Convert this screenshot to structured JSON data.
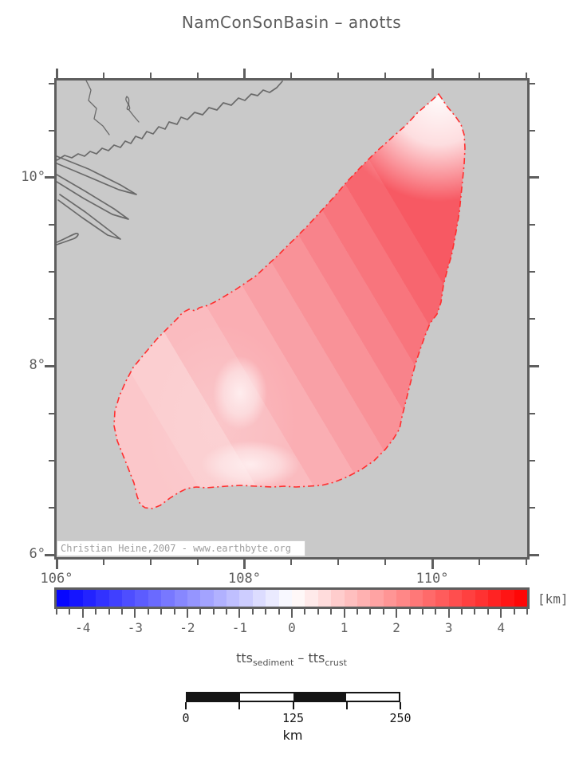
{
  "title": "NamConSonBasin – anotts",
  "map": {
    "attribution": "Christian Heine,2007 - www.earthbyte.org",
    "axes": {
      "lon": {
        "min": 106,
        "max": 111.01,
        "tick_step": 0.5,
        "annotations": [
          {
            "value": 106,
            "text": "106°"
          },
          {
            "value": 108,
            "text": "108°"
          },
          {
            "value": 110,
            "text": "110°"
          }
        ]
      },
      "lat": {
        "min": 5.975,
        "max": 11.03,
        "tick_step": 0.5,
        "annotations": [
          {
            "value": 10,
            "text": "10°"
          },
          {
            "value": 8,
            "text": "8°"
          },
          {
            "value": 6,
            "text": "6°"
          }
        ]
      }
    }
  },
  "colorbar": {
    "unit": "[km]",
    "min": -4.5,
    "max": 4.5,
    "step": 0.25,
    "annotations": [
      {
        "value": -4,
        "text": "-4"
      },
      {
        "value": -3,
        "text": "-3"
      },
      {
        "value": -2,
        "text": "-2"
      },
      {
        "value": -1,
        "text": "-1"
      },
      {
        "value": 0,
        "text": "0"
      },
      {
        "value": 1,
        "text": "1"
      },
      {
        "value": 2,
        "text": "2"
      },
      {
        "value": 3,
        "text": "3"
      },
      {
        "value": 4,
        "text": "4"
      }
    ]
  },
  "legend": {
    "term1": "tts",
    "term1_sub": "sediment",
    "operator": " – ",
    "term2": "tts",
    "term2_sub": "crust"
  },
  "scalebar": {
    "labels": [
      {
        "frac": 0,
        "text": "0"
      },
      {
        "frac": 0.5,
        "text": "125"
      },
      {
        "frac": 1,
        "text": "250"
      }
    ],
    "unit": "km",
    "segments": 4
  },
  "chart_data": {
    "type": "heatmap",
    "title": "NamConSonBasin – anotts",
    "variable": "tts_sediment - tts_crust",
    "unit": "km",
    "map_extent": {
      "lon_deg_east": [
        106,
        111
      ],
      "lat_deg_north": [
        6,
        11
      ]
    },
    "colorbar": {
      "min": -4.5,
      "max": 4.5,
      "step": 0.25,
      "annotated_values": [
        -4,
        -3,
        -2,
        -1,
        0,
        1,
        2,
        3,
        4
      ],
      "palette": "polar blue-white-red",
      "negative_color": "#0000ff",
      "zero_color": "#ffffff",
      "positive_color": "#ff0000"
    },
    "basin_outline_color": "#ff2e2e",
    "basin_values_km": {
      "west_interior": 1.0,
      "center_lows": 0.5,
      "east_flank_max": 3.5,
      "north_tip": 0.1
    },
    "scalebar_km": [
      0,
      125,
      250
    ],
    "attribution": "Christian Heine,2007 - www.earthbyte.org"
  }
}
